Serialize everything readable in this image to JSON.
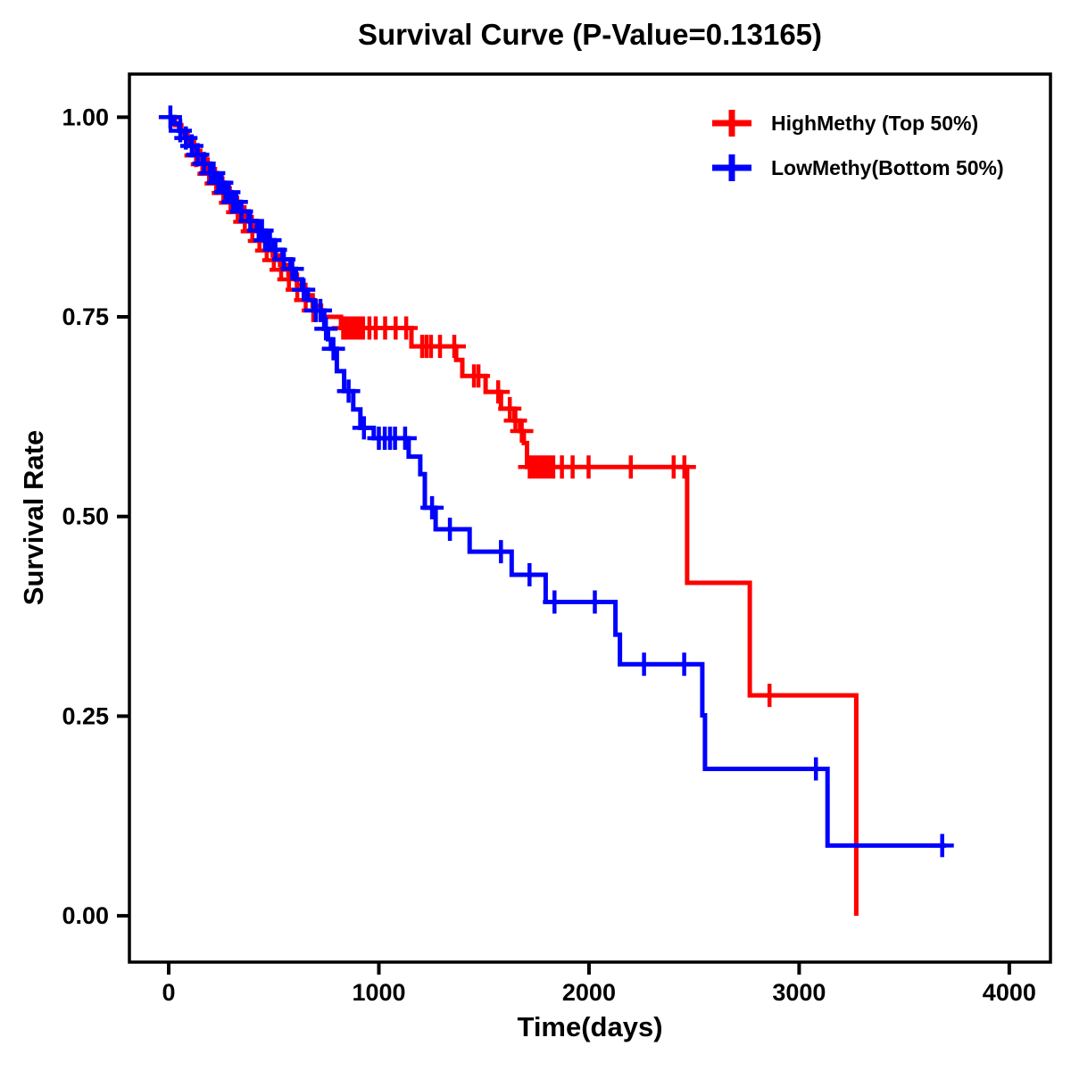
{
  "chart_data": {
    "type": "line",
    "subtype": "kaplan-meier-step-survival",
    "title": "Survival Curve (P-Value=0.13165)",
    "p_value": "0.13165",
    "xlabel": "Time(days)",
    "ylabel": "Survival Rate",
    "grid": false,
    "legend_position": "top-right-inside",
    "axis_color": "#000000",
    "background_color": "#ffffff",
    "xlim": [
      -187,
      4196
    ],
    "ylim": [
      -0.058,
      1.054
    ],
    "xticks": [
      {
        "value": 0,
        "label": "0"
      },
      {
        "value": 1000,
        "label": "1000"
      },
      {
        "value": 2000,
        "label": "2000"
      },
      {
        "value": 3000,
        "label": "3000"
      },
      {
        "value": 4000,
        "label": "4000"
      }
    ],
    "yticks": [
      {
        "value": 1.0,
        "label": "1.00"
      },
      {
        "value": 0.75,
        "label": "0.75"
      },
      {
        "value": 0.5,
        "label": "0.50"
      },
      {
        "value": 0.25,
        "label": "0.25"
      },
      {
        "value": 0.0,
        "label": "0.00"
      }
    ],
    "series": [
      {
        "name": "HighMethy (Top 50%)",
        "color": "#FF0000",
        "end_day": 3272,
        "steps": [
          [
            0,
            1.0
          ],
          [
            30,
            0.99
          ],
          [
            60,
            0.98
          ],
          [
            90,
            0.969
          ],
          [
            120,
            0.958
          ],
          [
            150,
            0.947
          ],
          [
            185,
            0.935
          ],
          [
            220,
            0.923
          ],
          [
            255,
            0.911
          ],
          [
            290,
            0.899
          ],
          [
            325,
            0.887
          ],
          [
            360,
            0.875
          ],
          [
            395,
            0.863
          ],
          [
            430,
            0.851
          ],
          [
            460,
            0.839
          ],
          [
            495,
            0.827
          ],
          [
            530,
            0.815
          ],
          [
            570,
            0.803
          ],
          [
            610,
            0.79
          ],
          [
            650,
            0.777
          ],
          [
            685,
            0.764
          ],
          [
            725,
            0.75
          ],
          [
            820,
            0.736
          ],
          [
            1155,
            0.713
          ],
          [
            1368,
            0.696
          ],
          [
            1397,
            0.676
          ],
          [
            1508,
            0.656
          ],
          [
            1581,
            0.635
          ],
          [
            1645,
            0.62
          ],
          [
            1672,
            0.607
          ],
          [
            1690,
            0.592
          ],
          [
            1705,
            0.562
          ],
          [
            2467,
            0.417
          ],
          [
            2765,
            0.276
          ],
          [
            3272,
            0.0
          ]
        ],
        "censors": [
          [
            130,
            0.952
          ],
          [
            160,
            0.941
          ],
          [
            192,
            0.929
          ],
          [
            226,
            0.917
          ],
          [
            260,
            0.905
          ],
          [
            294,
            0.893
          ],
          [
            328,
            0.881
          ],
          [
            362,
            0.869
          ],
          [
            398,
            0.857
          ],
          [
            432,
            0.845
          ],
          [
            466,
            0.833
          ],
          [
            500,
            0.821
          ],
          [
            535,
            0.809
          ],
          [
            572,
            0.797
          ],
          [
            612,
            0.784
          ],
          [
            652,
            0.771
          ],
          [
            688,
            0.758
          ],
          [
            830,
            0.736
          ],
          [
            848,
            0.736
          ],
          [
            863,
            0.736
          ],
          [
            878,
            0.736
          ],
          [
            893,
            0.736
          ],
          [
            908,
            0.736
          ],
          [
            925,
            0.736
          ],
          [
            955,
            0.736
          ],
          [
            985,
            0.736
          ],
          [
            1030,
            0.736
          ],
          [
            1080,
            0.736
          ],
          [
            1130,
            0.736
          ],
          [
            1206,
            0.713
          ],
          [
            1227,
            0.713
          ],
          [
            1248,
            0.713
          ],
          [
            1291,
            0.713
          ],
          [
            1359,
            0.713
          ],
          [
            1453,
            0.676
          ],
          [
            1474,
            0.676
          ],
          [
            1568,
            0.656
          ],
          [
            1623,
            0.635
          ],
          [
            1650,
            0.62
          ],
          [
            1680,
            0.607
          ],
          [
            1718,
            0.562
          ],
          [
            1732,
            0.562
          ],
          [
            1747,
            0.562
          ],
          [
            1762,
            0.562
          ],
          [
            1778,
            0.562
          ],
          [
            1795,
            0.562
          ],
          [
            1812,
            0.562
          ],
          [
            1830,
            0.562
          ],
          [
            1871,
            0.562
          ],
          [
            1922,
            0.562
          ],
          [
            1998,
            0.562
          ],
          [
            2199,
            0.562
          ],
          [
            2403,
            0.562
          ],
          [
            2454,
            0.562
          ],
          [
            2859,
            0.276
          ]
        ]
      },
      {
        "name": "LowMethy(Bottom 50%)",
        "color": "#0000FF",
        "end_day": 3700,
        "steps": [
          [
            0,
            1.0
          ],
          [
            25,
            0.992
          ],
          [
            50,
            0.983
          ],
          [
            78,
            0.974
          ],
          [
            105,
            0.964
          ],
          [
            132,
            0.953
          ],
          [
            162,
            0.942
          ],
          [
            196,
            0.93
          ],
          [
            230,
            0.918
          ],
          [
            265,
            0.906
          ],
          [
            300,
            0.894
          ],
          [
            340,
            0.882
          ],
          [
            380,
            0.87
          ],
          [
            420,
            0.858
          ],
          [
            462,
            0.846
          ],
          [
            502,
            0.834
          ],
          [
            542,
            0.822
          ],
          [
            580,
            0.81
          ],
          [
            605,
            0.797
          ],
          [
            635,
            0.784
          ],
          [
            662,
            0.771
          ],
          [
            690,
            0.758
          ],
          [
            740,
            0.735
          ],
          [
            758,
            0.722
          ],
          [
            772,
            0.71
          ],
          [
            800,
            0.682
          ],
          [
            835,
            0.657
          ],
          [
            878,
            0.634
          ],
          [
            912,
            0.611
          ],
          [
            976,
            0.598
          ],
          [
            1142,
            0.575
          ],
          [
            1197,
            0.553
          ],
          [
            1219,
            0.511
          ],
          [
            1270,
            0.484
          ],
          [
            1432,
            0.456
          ],
          [
            1632,
            0.427
          ],
          [
            1794,
            0.393
          ],
          [
            2126,
            0.352
          ],
          [
            2147,
            0.315
          ],
          [
            2539,
            0.251
          ],
          [
            2552,
            0.184
          ],
          [
            3135,
            0.088
          ]
        ],
        "censors": [
          [
            8,
            1.0
          ],
          [
            55,
            0.983
          ],
          [
            82,
            0.974
          ],
          [
            110,
            0.964
          ],
          [
            138,
            0.953
          ],
          [
            168,
            0.942
          ],
          [
            200,
            0.93
          ],
          [
            214,
            0.93
          ],
          [
            236,
            0.918
          ],
          [
            252,
            0.918
          ],
          [
            270,
            0.906
          ],
          [
            286,
            0.906
          ],
          [
            306,
            0.894
          ],
          [
            322,
            0.894
          ],
          [
            346,
            0.882
          ],
          [
            388,
            0.87
          ],
          [
            428,
            0.858
          ],
          [
            444,
            0.858
          ],
          [
            458,
            0.846
          ],
          [
            470,
            0.846
          ],
          [
            482,
            0.846
          ],
          [
            508,
            0.834
          ],
          [
            548,
            0.822
          ],
          [
            588,
            0.81
          ],
          [
            642,
            0.784
          ],
          [
            700,
            0.758
          ],
          [
            722,
            0.758
          ],
          [
            748,
            0.735
          ],
          [
            784,
            0.71
          ],
          [
            856,
            0.657
          ],
          [
            929,
            0.611
          ],
          [
            1000,
            0.598
          ],
          [
            1028,
            0.598
          ],
          [
            1053,
            0.598
          ],
          [
            1077,
            0.598
          ],
          [
            1125,
            0.598
          ],
          [
            1253,
            0.511
          ],
          [
            1338,
            0.484
          ],
          [
            1581,
            0.456
          ],
          [
            1717,
            0.427
          ],
          [
            1836,
            0.393
          ],
          [
            2028,
            0.393
          ],
          [
            2262,
            0.315
          ],
          [
            2453,
            0.315
          ],
          [
            3080,
            0.184
          ],
          [
            3681,
            0.088
          ]
        ]
      }
    ]
  }
}
